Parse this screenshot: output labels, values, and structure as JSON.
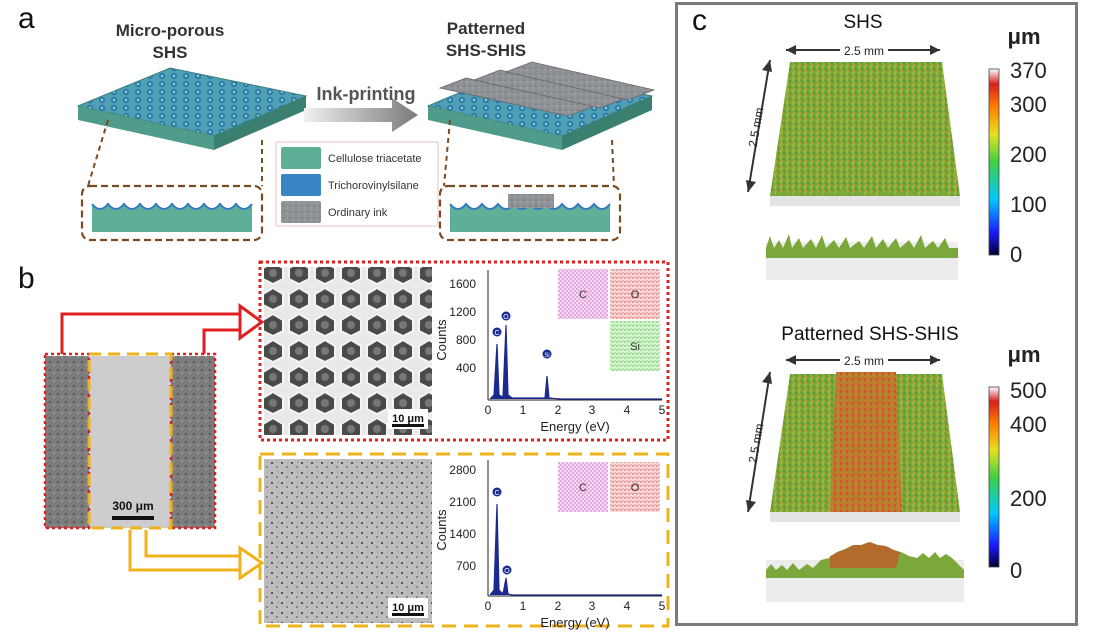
{
  "panels": {
    "a": {
      "letter": "a",
      "left_title": [
        "Micro-porous",
        "SHS"
      ],
      "right_title": [
        "Patterned",
        "SHS-SHIS"
      ],
      "arrow_label": "Ink-printing",
      "legend": [
        "Cellulose triacetate",
        "Trichorovinylsilane",
        "Ordinary ink"
      ],
      "colors": {
        "cellulose": "#5fae98",
        "silane": "#3a86c4",
        "ink": "#8a8d91",
        "brown_dash": "#7a4a22"
      }
    },
    "b": {
      "letter": "b",
      "sem_scale": "300 μm",
      "inset_scale": "10 μm",
      "frame_colors": {
        "red": "#e02020",
        "yellow": "#f0b21b"
      },
      "eds_top": {
        "ylabel": "Counts",
        "xlabel": "Energy (eV)",
        "yticks": [
          "1600",
          "1200",
          "800",
          "400"
        ],
        "xticks": [
          "0",
          "1",
          "2",
          "3",
          "4",
          "5"
        ],
        "peaks": [
          "C",
          "O",
          "Si"
        ],
        "maps": [
          "C",
          "O",
          "Si"
        ]
      },
      "eds_bottom": {
        "ylabel": "Counts",
        "xlabel": "Energy (eV)",
        "yticks": [
          "2800",
          "2100",
          "1400",
          "700"
        ],
        "xticks": [
          "0",
          "1",
          "2",
          "3",
          "4",
          "5"
        ],
        "peaks": [
          "C",
          "O"
        ],
        "maps": [
          "C",
          "O"
        ]
      }
    },
    "c": {
      "letter": "c",
      "top": {
        "title": "SHS",
        "dim_x": "2.5 mm",
        "dim_y": "2.5 mm",
        "unit": "μm",
        "colorbar_ticks": [
          "370",
          "300",
          "200",
          "100",
          "0"
        ]
      },
      "bottom": {
        "title": "Patterned SHS-SHIS",
        "dim_x": "2.5 mm",
        "dim_y": "2.5 mm",
        "unit": "μm",
        "colorbar_ticks": [
          "500",
          "400",
          "200",
          "0"
        ]
      }
    }
  }
}
